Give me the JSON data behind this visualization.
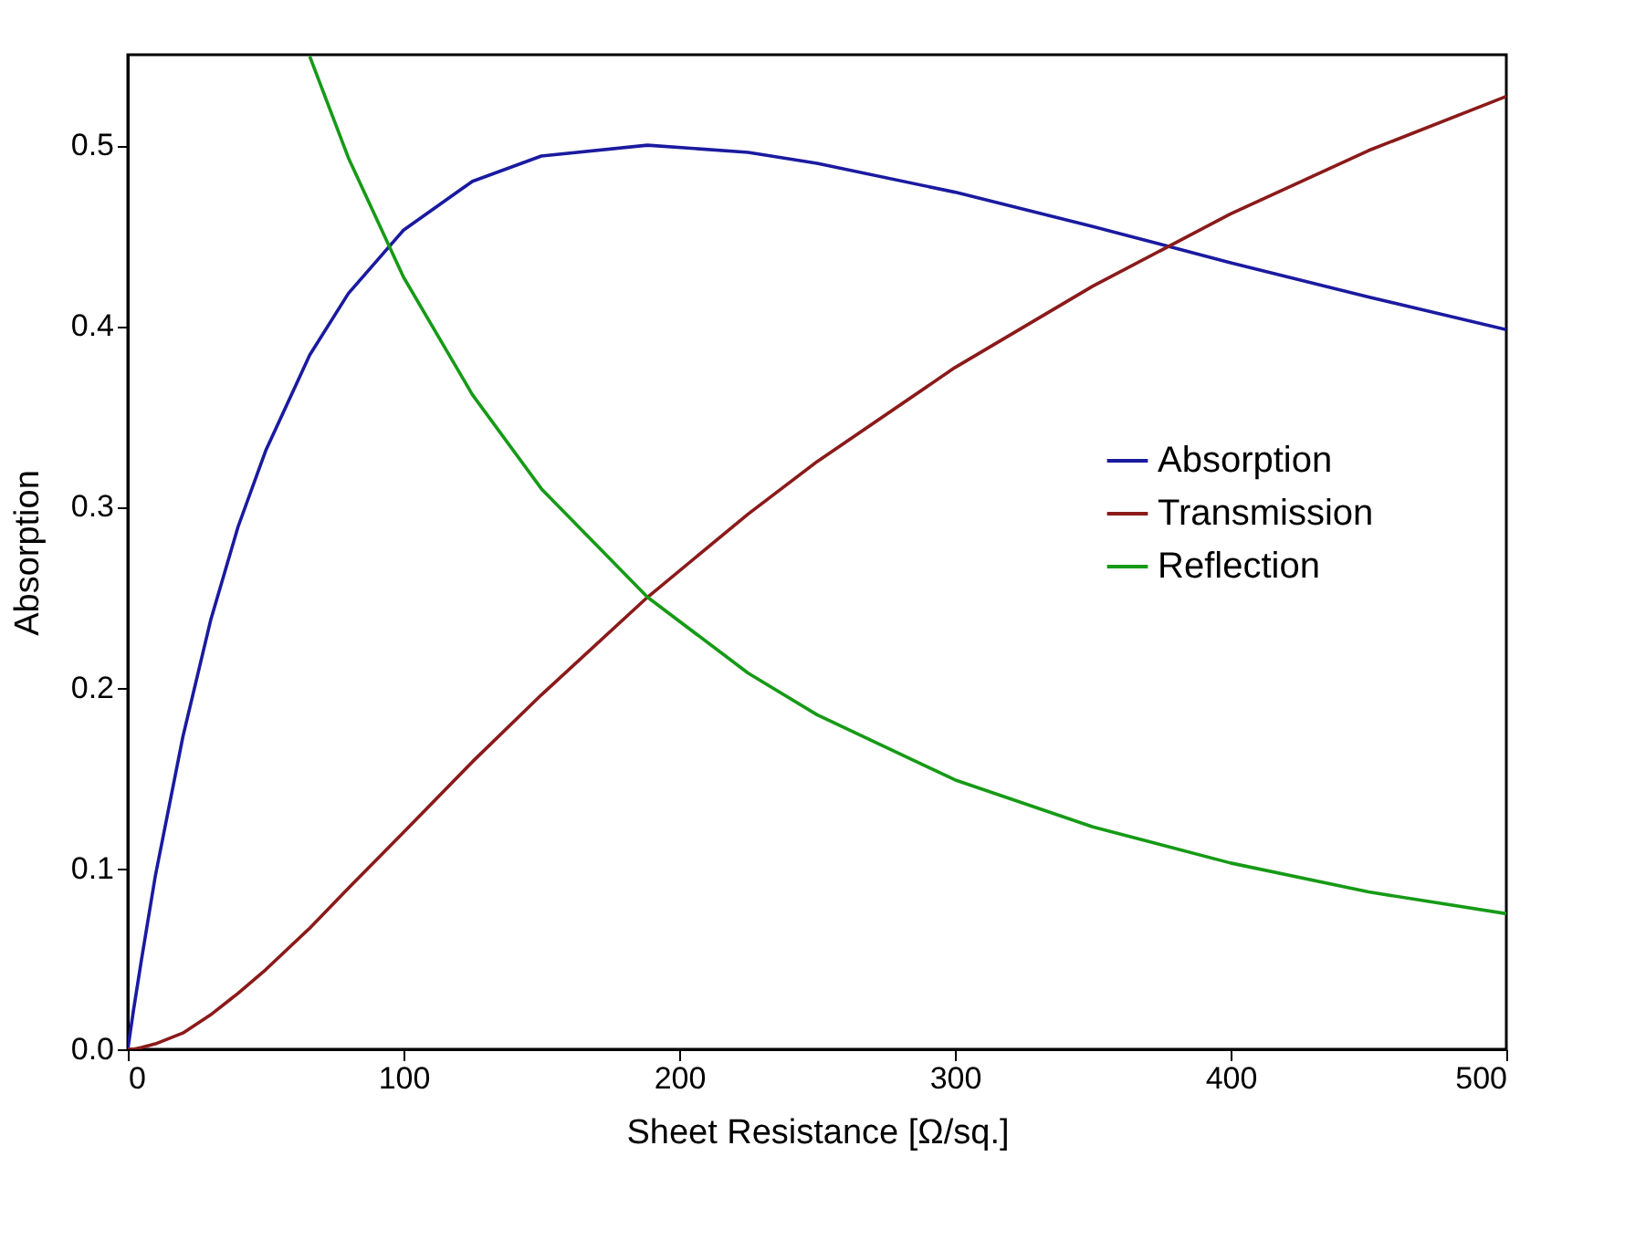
{
  "chart_data": {
    "type": "line",
    "xlabel": "Sheet Resistance [Ω/sq.]",
    "ylabel": "Absorption",
    "x": [
      0,
      2,
      5,
      10,
      20,
      30,
      40,
      50,
      66,
      80,
      100,
      125,
      150,
      188.5,
      225,
      250,
      300,
      350,
      400,
      450,
      500
    ],
    "series": [
      {
        "name": "Absorption",
        "color": "#1a1aa0",
        "values": [
          0,
          0.021,
          0.05,
          0.096,
          0.173,
          0.237,
          0.289,
          0.331,
          0.384,
          0.418,
          0.453,
          0.48,
          0.494,
          0.5,
          0.496,
          0.49,
          0.474,
          0.455,
          0.435,
          0.416,
          0.398
        ]
      },
      {
        "name": "Transmission",
        "color": "#8b1a1a",
        "values": [
          0,
          0,
          0.001,
          0.003,
          0.009,
          0.019,
          0.031,
          0.044,
          0.067,
          0.089,
          0.12,
          0.159,
          0.196,
          0.25,
          0.296,
          0.325,
          0.377,
          0.422,
          0.462,
          0.497,
          0.527
        ]
      },
      {
        "name": "Reflection",
        "color": "#169a16",
        "x": [
          66,
          80,
          100,
          125,
          150,
          188.5,
          225,
          250,
          300,
          350,
          400,
          450,
          500
        ],
        "values": [
          0.549,
          0.493,
          0.427,
          0.362,
          0.31,
          0.25,
          0.208,
          0.185,
          0.149,
          0.123,
          0.103,
          0.087,
          0.075
        ]
      }
    ],
    "xlim": [
      0,
      500
    ],
    "xticks": [
      0,
      100,
      200,
      300,
      400,
      500
    ],
    "ylim": [
      0,
      0.55
    ],
    "yticks": [
      {
        "value": 0,
        "label": "0.0"
      },
      0.1,
      0.2,
      0.3,
      0.4,
      0.5
    ],
    "grid": false,
    "legend": "right",
    "line_style": "solid",
    "marker": "none"
  }
}
